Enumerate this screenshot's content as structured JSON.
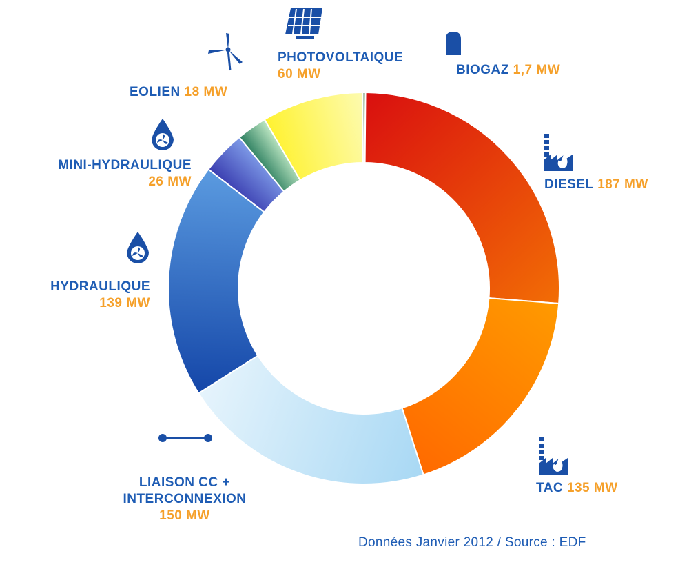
{
  "chart_data": {
    "type": "pie",
    "style": "donut",
    "categories": [
      "BIOGAZ",
      "DIESEL",
      "TAC",
      "LIAISON CC + INTERCONNEXION",
      "HYDRAULIQUE",
      "MINI-HYDRAULIQUE",
      "EOLIEN",
      "PHOTOVOLTAIQUE"
    ],
    "values": [
      1.7,
      187,
      135,
      150,
      139,
      26,
      18,
      60
    ],
    "unit": "MW",
    "colors": [
      [
        "#7fa27f",
        "#5f8a5f"
      ],
      [
        "#d90f0f",
        "#f26d05"
      ],
      [
        "#ff9a00",
        "#ff6a00"
      ],
      [
        "#a8d8f4",
        "#e6f4fc"
      ],
      [
        "#1446a8",
        "#5b9be0"
      ],
      [
        "#3a3db0",
        "#7f9ce8"
      ],
      [
        "#2d7f60",
        "#bfe8c4"
      ],
      [
        "#fff230",
        "#fdfbb0"
      ]
    ],
    "source": "Données Janvier 2012 / Source : EDF"
  },
  "labels": {
    "photovoltaique": {
      "name": "PHOTOVOLTAIQUE",
      "value": "60 MW"
    },
    "biogaz": {
      "name": "BIOGAZ",
      "value": "1,7 MW"
    },
    "eolien": {
      "name": "EOLIEN",
      "value": "18 MW"
    },
    "mini_hydraulique": {
      "name": "MINI-HYDRAULIQUE",
      "value": "26 MW"
    },
    "hydraulique": {
      "name": "HYDRAULIQUE",
      "value": "139 MW"
    },
    "diesel": {
      "name": "DIESEL",
      "value": "187 MW"
    },
    "tac": {
      "name": "TAC",
      "value": "135 MW"
    },
    "liaison": {
      "name_line1": "LIAISON CC +",
      "name_line2": "INTERCONNEXION",
      "value": "150 MW"
    }
  },
  "icons": {
    "photovoltaique": "solar-panel-icon",
    "biogaz": "biogas-tank-icon",
    "eolien": "wind-turbine-icon",
    "mini_hydraulique": "water-drop-turbine-icon",
    "hydraulique": "water-drop-turbine-icon",
    "diesel": "power-plant-flame-icon",
    "tac": "power-plant-flame-icon",
    "liaison": "cable-link-icon"
  },
  "palette": {
    "label_blue": "#1e5cb4",
    "value_orange": "#f5a02a",
    "icon_blue": "#1a4fa6"
  }
}
